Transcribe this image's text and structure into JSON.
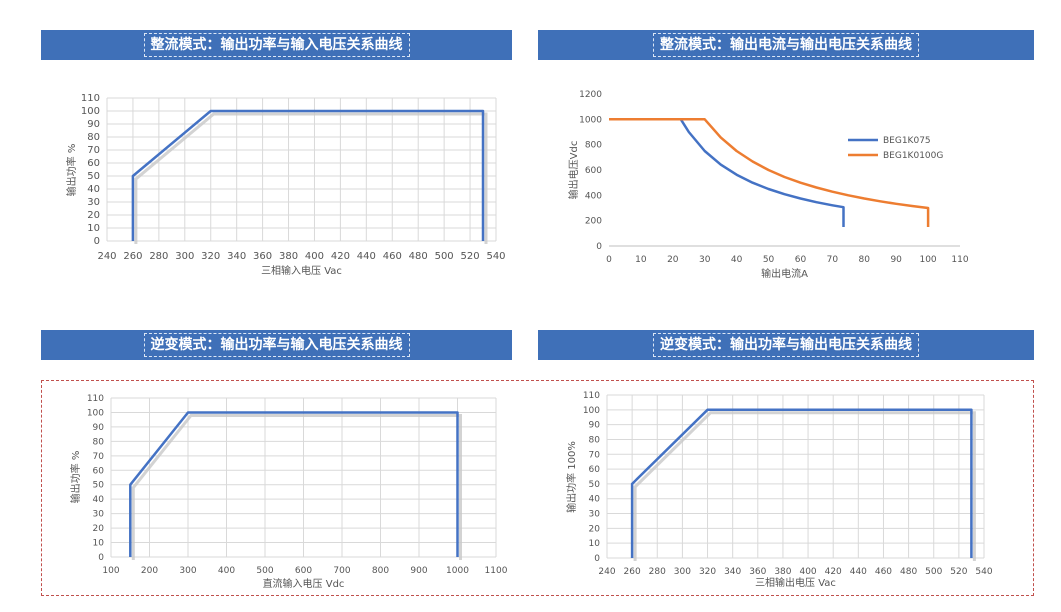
{
  "banners": [
    {
      "text": "整流模式：输出功率与输入电压关系曲线"
    },
    {
      "text": "整流模式：输出电流与输出电压关系曲线"
    },
    {
      "text": "逆变模式：输出功率与输入电压关系曲线"
    },
    {
      "text": "逆变模式：输出功率与输出电压关系曲线"
    }
  ],
  "chart_data": [
    {
      "type": "line",
      "title": "整流模式：输出功率与输入电压关系曲线",
      "xlabel": "三相输入电压 Vac",
      "ylabel": "输出功率 %",
      "xlim": [
        240,
        540
      ],
      "ylim": [
        0,
        110
      ],
      "xticks": [
        240,
        260,
        280,
        300,
        320,
        340,
        360,
        380,
        400,
        420,
        440,
        460,
        480,
        500,
        520,
        540
      ],
      "yticks": [
        0,
        10,
        20,
        30,
        40,
        50,
        60,
        70,
        80,
        90,
        100,
        110
      ],
      "grid": true,
      "series": [
        {
          "color": "#4472c4",
          "x": [
            260,
            260,
            320,
            530,
            530
          ],
          "y": [
            0,
            50,
            100,
            100,
            0
          ]
        }
      ]
    },
    {
      "type": "line",
      "title": "整流模式：输出电流与输出电压关系曲线",
      "xlabel": "输出电流A",
      "ylabel": "输出电压Vdc",
      "xlim": [
        0,
        110
      ],
      "ylim": [
        0,
        1200
      ],
      "xticks": [
        0,
        10,
        20,
        30,
        40,
        50,
        60,
        70,
        80,
        90,
        100,
        110
      ],
      "yticks": [
        0,
        200,
        400,
        600,
        800,
        1000,
        1200
      ],
      "grid": false,
      "legend": "right",
      "series": [
        {
          "name": "BEG1K075",
          "color": "#4472c4",
          "x": [
            0,
            22.5,
            25,
            30,
            35,
            40,
            45,
            50,
            55,
            60,
            65,
            70,
            73.5,
            73.5
          ],
          "y": [
            1000,
            1000,
            900,
            750,
            643,
            563,
            500,
            450,
            409,
            375,
            346,
            321,
            306,
            150
          ]
        },
        {
          "name": "BEG1K0100G",
          "color": "#ed7d31",
          "x": [
            0,
            30,
            35,
            40,
            45,
            50,
            55,
            60,
            65,
            70,
            75,
            80,
            85,
            90,
            95,
            100,
            100
          ],
          "y": [
            1000,
            1000,
            857,
            750,
            667,
            600,
            545,
            500,
            462,
            429,
            400,
            375,
            353,
            333,
            316,
            300,
            150
          ]
        }
      ]
    },
    {
      "type": "line",
      "title": "逆变模式：输出功率与输入电压关系曲线",
      "xlabel": "直流输入电压 Vdc",
      "ylabel": "输出功率 %",
      "xlim": [
        100,
        1100
      ],
      "ylim": [
        0,
        110
      ],
      "xticks": [
        100,
        200,
        300,
        400,
        500,
        600,
        700,
        800,
        900,
        1000,
        1100
      ],
      "yticks": [
        0,
        10,
        20,
        30,
        40,
        50,
        60,
        70,
        80,
        90,
        100,
        110
      ],
      "grid": true,
      "series": [
        {
          "color": "#4472c4",
          "x": [
            150,
            150,
            300,
            1000,
            1000
          ],
          "y": [
            0,
            50,
            100,
            100,
            0
          ]
        }
      ]
    },
    {
      "type": "line",
      "title": "逆变模式：输出功率与输出电压关系曲线",
      "xlabel": "三相输出电压 Vac",
      "ylabel": "输出功率 100%",
      "xlim": [
        240,
        540
      ],
      "ylim": [
        0,
        110
      ],
      "xticks": [
        240,
        260,
        280,
        300,
        320,
        340,
        360,
        380,
        400,
        420,
        440,
        460,
        480,
        500,
        520,
        540
      ],
      "yticks": [
        0,
        10,
        20,
        30,
        40,
        50,
        60,
        70,
        80,
        90,
        100,
        110
      ],
      "grid": true,
      "series": [
        {
          "color": "#4472c4",
          "x": [
            260,
            260,
            320,
            530,
            530
          ],
          "y": [
            0,
            50,
            100,
            100,
            0
          ]
        }
      ]
    }
  ]
}
